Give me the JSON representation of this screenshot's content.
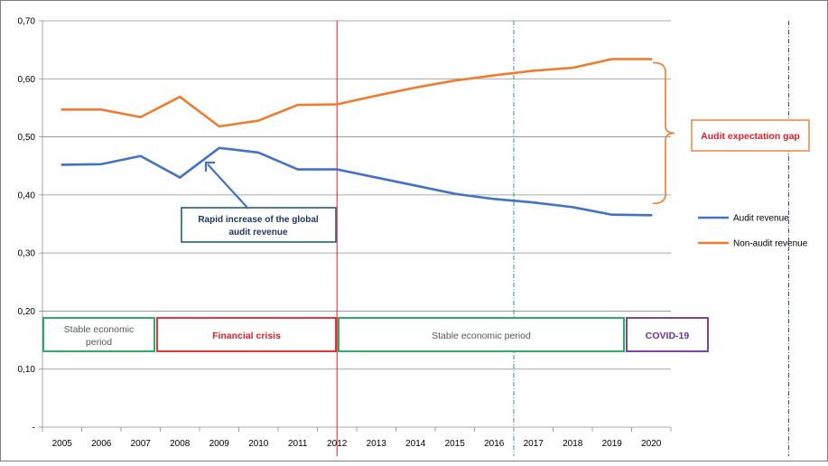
{
  "chart_data": {
    "type": "line",
    "categories": [
      "2005",
      "2006",
      "2007",
      "2008",
      "2009",
      "2010",
      "2011",
      "2012",
      "2013",
      "2014",
      "2015",
      "2016",
      "2017",
      "2018",
      "2019",
      "2020"
    ],
    "y_tick_labels": [
      "-",
      "0,10",
      "0,20",
      "0,30",
      "0,40",
      "0,50",
      "0,60",
      "0,70"
    ],
    "ylim": [
      0,
      0.7
    ],
    "grid": true,
    "legend_position": "right",
    "series": [
      {
        "name": "Audit revenue",
        "color": "#4472c4",
        "values": [
          0.452,
          0.453,
          0.467,
          0.43,
          0.481,
          0.473,
          0.444,
          0.444,
          0.43,
          0.416,
          0.402,
          0.393,
          0.387,
          0.379,
          0.366,
          0.365
        ]
      },
      {
        "name": "Non-audit revenue",
        "color": "#ed7d31",
        "values": [
          0.547,
          0.547,
          0.534,
          0.569,
          0.518,
          0.528,
          0.555,
          0.556,
          0.571,
          0.585,
          0.597,
          0.606,
          0.614,
          0.619,
          0.634,
          0.634
        ]
      }
    ],
    "vertical_markers": [
      {
        "position": 7.5,
        "color": "#e02020",
        "style": "solid"
      },
      {
        "position": 12,
        "color": "#2e9e6a",
        "style": "dashdot"
      },
      {
        "position": 19,
        "color": "#3b4a9a",
        "style": "dashdot"
      }
    ],
    "annotations": {
      "rapid_increase": "Rapid increase of the global audit revenue",
      "expectation_gap": "Audit expectation gap"
    },
    "periods": [
      {
        "label": "Stable economic period",
        "color": "#19a35a",
        "text_color": "#595959"
      },
      {
        "label": "Financial crisis",
        "color": "#e0202a",
        "text_color": "#e0202a"
      },
      {
        "label": "Stable economic period",
        "color": "#19a35a",
        "text_color": "#595959"
      },
      {
        "label": "COVID-19",
        "color": "#7030a0",
        "text_color": "#7030a0"
      }
    ]
  }
}
